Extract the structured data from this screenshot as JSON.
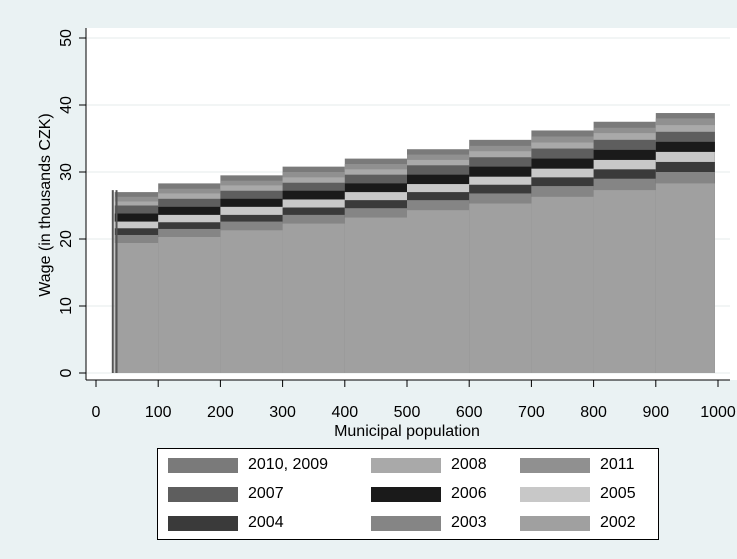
{
  "chart_data": {
    "type": "area",
    "title": "",
    "xlabel": "Municipal population",
    "ylabel": "Wage (in thousands CZK)",
    "xlim": [
      0,
      1000
    ],
    "ylim": [
      0,
      50
    ],
    "x_ticks": [
      "0",
      "100",
      "200",
      "300",
      "400",
      "500",
      "600",
      "700",
      "800",
      "900",
      "1000"
    ],
    "y_ticks": [
      "0",
      "10",
      "20",
      "30",
      "40",
      "50"
    ],
    "grid": "horizontal",
    "legend_position": "bottom",
    "steps": [
      {
        "x_start": 30,
        "x_end": 100
      },
      {
        "x_start": 100,
        "x_end": 200
      },
      {
        "x_start": 200,
        "x_end": 300
      },
      {
        "x_start": 300,
        "x_end": 400
      },
      {
        "x_start": 400,
        "x_end": 500
      },
      {
        "x_start": 500,
        "x_end": 600
      },
      {
        "x_start": 600,
        "x_end": 700
      },
      {
        "x_start": 700,
        "x_end": 800
      },
      {
        "x_start": 800,
        "x_end": 900
      },
      {
        "x_start": 900,
        "x_end": 995
      }
    ],
    "series": [
      {
        "name": "2010, 2009",
        "color": "#7a7a7a",
        "values": [
          27.0,
          28.3,
          29.5,
          30.8,
          32.0,
          33.4,
          34.8,
          36.2,
          37.5,
          38.8
        ]
      },
      {
        "name": "2011",
        "color": "#909090",
        "values": [
          26.3,
          27.5,
          28.7,
          30.0,
          31.2,
          32.6,
          33.9,
          35.3,
          36.6,
          38.0
        ]
      },
      {
        "name": "2008",
        "color": "#a9a9a9",
        "values": [
          25.6,
          26.8,
          28.0,
          29.2,
          30.4,
          31.8,
          33.1,
          34.4,
          35.8,
          37.0
        ]
      },
      {
        "name": "2007",
        "color": "#5e5e5e",
        "values": [
          25.0,
          26.0,
          27.2,
          28.4,
          29.6,
          31.0,
          32.2,
          33.5,
          34.8,
          36.0
        ]
      },
      {
        "name": "2006",
        "color": "#1a1a1a",
        "values": [
          23.8,
          24.8,
          26.0,
          27.2,
          28.3,
          29.6,
          30.8,
          32.0,
          33.3,
          34.5
        ]
      },
      {
        "name": "2005",
        "color": "#c8c8c8",
        "values": [
          22.6,
          23.6,
          24.8,
          25.9,
          27.0,
          28.2,
          29.3,
          30.5,
          31.8,
          33.0
        ]
      },
      {
        "name": "2004",
        "color": "#3a3a3a",
        "values": [
          21.6,
          22.5,
          23.6,
          24.7,
          25.8,
          27.0,
          28.1,
          29.2,
          30.4,
          31.5
        ]
      },
      {
        "name": "2003",
        "color": "#858585",
        "values": [
          20.6,
          21.5,
          22.6,
          23.6,
          24.6,
          25.8,
          26.8,
          27.9,
          29.0,
          30.0
        ]
      },
      {
        "name": "2002",
        "color": "#a0a0a0",
        "values": [
          19.4,
          20.3,
          21.3,
          22.3,
          23.2,
          24.3,
          25.3,
          26.3,
          27.3,
          28.3
        ]
      }
    ],
    "spikes": [
      {
        "x": 27,
        "value": 27.3
      },
      {
        "x": 33,
        "value": 27.3
      }
    ],
    "legend": {
      "entries": [
        "2010, 2009",
        "2008",
        "2011",
        "2007",
        "2006",
        "2005",
        "2004",
        "2003",
        "2002"
      ]
    }
  }
}
